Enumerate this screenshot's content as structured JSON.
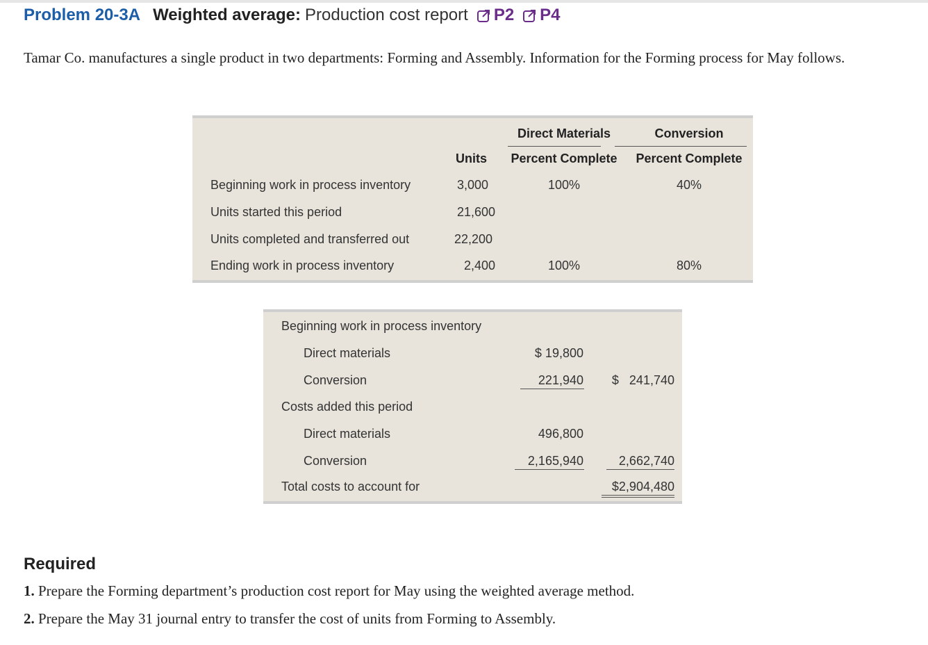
{
  "header": {
    "problem_number": "Problem 20-3A",
    "title": "Weighted average:",
    "subtitle": "Production cost report",
    "objectives": [
      "P2",
      "P4"
    ]
  },
  "intro": "Tamar Co. manufactures a single product in two departments: Forming and Assembly. Information for the Forming process for May follows.",
  "units_table": {
    "group_headers": [
      "Direct Materials",
      "Conversion"
    ],
    "column_headers": [
      "Units",
      "Percent Complete",
      "Percent Complete"
    ],
    "rows": [
      {
        "label": "Beginning work in process inventory",
        "units": "3,000",
        "dm": "100%",
        "conv": "40%"
      },
      {
        "label": "Units started this period",
        "units": "21,600",
        "dm": "",
        "conv": ""
      },
      {
        "label": "Units completed and transferred out",
        "units": "22,200",
        "dm": "",
        "conv": ""
      },
      {
        "label": "Ending work in process inventory",
        "units": "2,400",
        "dm": "100%",
        "conv": "80%"
      }
    ]
  },
  "cost_table": {
    "beginning_label": "Beginning work in process inventory",
    "beg_dm_label": "Direct materials",
    "beg_dm_value": "$ 19,800",
    "beg_conv_label": "Conversion",
    "beg_conv_value": "221,940",
    "beg_total_value": "$   241,740",
    "added_label": "Costs added this period",
    "add_dm_label": "Direct materials",
    "add_dm_value": "496,800",
    "add_conv_label": "Conversion",
    "add_conv_value": "2,165,940",
    "add_total_value": "2,662,740",
    "total_label": "Total costs to account for",
    "total_value": "$2,904,480"
  },
  "required": {
    "title": "Required",
    "items": [
      {
        "num": "1.",
        "text": "Prepare the Forming department’s production cost report for May using the weighted average method."
      },
      {
        "num": "2.",
        "text": "Prepare the May 31 journal entry to transfer the cost of units from Forming to Assembly."
      }
    ]
  },
  "colors": {
    "accent": "#1d5ea8",
    "objective": "#6b2d8a",
    "panel": "#e8e4dc"
  }
}
